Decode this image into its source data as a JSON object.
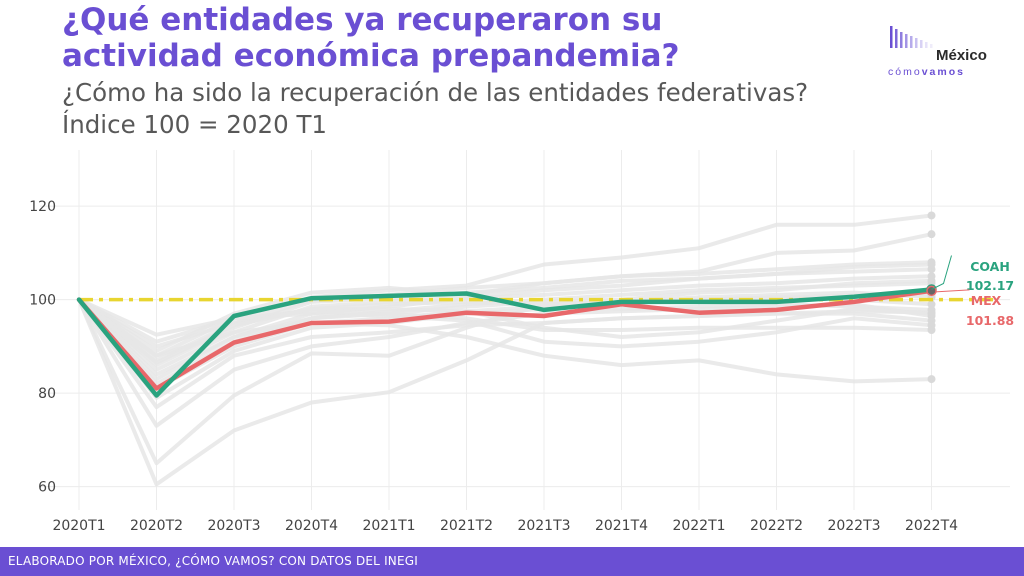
{
  "header": {
    "title_line1": "¿Qué entidades ya recuperaron su",
    "title_line2": "actividad económica prepandemia?",
    "subtitle_line1": "¿Cómo ha sido la recuperación de las entidades federativas?",
    "subtitle_line2": "Índice 100 = 2020 T1"
  },
  "logo": {
    "brand": "México",
    "como": "cómo",
    "vamos": "vamos"
  },
  "footer": {
    "credit": "ELABORADO POR MÉXICO, ¿CÓMO VAMOS? CON DATOS DEL INEGI"
  },
  "colors": {
    "purple": "#6a4fd3",
    "coah": "#2aa37f",
    "mex": "#e8686a",
    "reference": "#e8d530",
    "background_states": "#e6e6e6"
  },
  "chart_data": {
    "type": "line",
    "title": "",
    "xlabel": "",
    "ylabel": "",
    "categories": [
      "2020T1",
      "2020T2",
      "2020T3",
      "2020T4",
      "2021T1",
      "2021T2",
      "2021T3",
      "2021T4",
      "2022T1",
      "2022T2",
      "2022T3",
      "2022T4"
    ],
    "ylim": [
      55,
      132
    ],
    "yticks": [
      60,
      80,
      100,
      120
    ],
    "grid": true,
    "reference_line": {
      "value": 100,
      "style": "dash-dot",
      "color": "#e8d530"
    },
    "series": [
      {
        "name": "COAH",
        "highlight": true,
        "color": "#2aa37f",
        "end_label": "102.17",
        "values": [
          100,
          79.5,
          96.5,
          100.3,
          100.8,
          101.3,
          97.8,
          99.5,
          99.5,
          99.5,
          100.6,
          102.17
        ]
      },
      {
        "name": "MEX",
        "highlight": true,
        "color": "#e8686a",
        "end_label": "101.88",
        "values": [
          100,
          81,
          90.8,
          95,
          95.3,
          97.2,
          96.5,
          99,
          97.2,
          97.8,
          99.5,
          101.88
        ]
      },
      {
        "values": [
          100,
          60.5,
          72,
          78,
          80.2,
          87,
          95,
          96,
          96.5,
          97,
          97.5,
          97.3
        ]
      },
      {
        "values": [
          100,
          65,
          79.5,
          88.5,
          88,
          94,
          99,
          98,
          98.5,
          99,
          98.5,
          97.8
        ]
      },
      {
        "values": [
          100,
          73,
          85,
          90,
          92,
          95,
          97,
          97.5,
          98,
          98.5,
          99,
          96.5
        ]
      },
      {
        "values": [
          100,
          77,
          88,
          92,
          93,
          94.5,
          95,
          96,
          96.5,
          97,
          97,
          95.5
        ]
      },
      {
        "values": [
          100,
          79,
          89,
          94,
          95,
          97,
          98,
          99.5,
          100.5,
          101,
          101.5,
          100.5
        ]
      },
      {
        "values": [
          100,
          81,
          90,
          95,
          96,
          97.5,
          98.5,
          99.2,
          100,
          100.3,
          101,
          101
        ]
      },
      {
        "values": [
          100,
          82,
          91,
          96,
          97.5,
          99,
          100,
          101,
          102,
          102.5,
          103,
          103.5
        ]
      },
      {
        "values": [
          100,
          84,
          92,
          97,
          98.5,
          100.3,
          101,
          102,
          103,
          103.5,
          104.5,
          105
        ]
      },
      {
        "values": [
          100,
          85,
          93,
          98.5,
          99.5,
          100.5,
          102,
          103,
          104.5,
          105.5,
          106,
          106.5
        ]
      },
      {
        "values": [
          100,
          86,
          94,
          99.5,
          100.3,
          101.5,
          102.5,
          104,
          104.5,
          105.5,
          107,
          107.5
        ]
      },
      {
        "values": [
          100,
          87,
          95,
          99.8,
          101,
          102.5,
          103.5,
          105,
          105.5,
          106.5,
          107.5,
          108
        ]
      },
      {
        "values": [
          100,
          88,
          96,
          100.5,
          102,
          103,
          107.5,
          109,
          111,
          116,
          116,
          118
        ]
      },
      {
        "values": [
          100,
          89,
          97,
          101.5,
          102.5,
          101,
          103.5,
          105,
          106,
          110,
          110.5,
          114
        ]
      },
      {
        "values": [
          100,
          90,
          95,
          98,
          98,
          97.5,
          94,
          92,
          93,
          95.5,
          98,
          97
        ]
      },
      {
        "values": [
          100,
          91,
          96,
          97,
          96.5,
          95.5,
          91,
          90,
          91,
          93,
          96,
          94.5
        ]
      },
      {
        "values": [
          100,
          92.5,
          96,
          97.5,
          97,
          96,
          93.5,
          93.5,
          94,
          94,
          94,
          93.5
        ]
      },
      {
        "values": [
          100,
          88,
          93,
          95,
          94.5,
          92,
          88,
          86,
          87,
          84,
          82.5,
          83
        ]
      },
      {
        "values": [
          100,
          83,
          92,
          96,
          97,
          98.5,
          99.5,
          100,
          101.5,
          102,
          103.5,
          104
        ]
      },
      {
        "values": [
          100,
          86.5,
          94.5,
          98,
          99,
          99.5,
          99,
          99.5,
          100,
          100.5,
          100,
          99
        ]
      }
    ]
  }
}
